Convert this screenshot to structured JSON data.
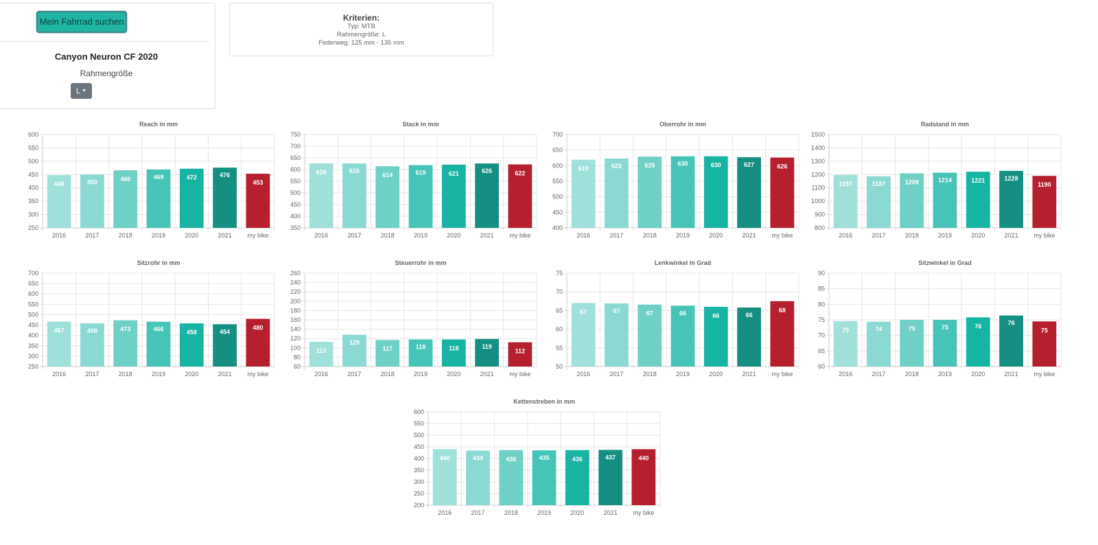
{
  "search_panel": {
    "search_button": "Mein Fahrrad suchen",
    "bike_name": "Canyon Neuron CF 2020",
    "frame_size_label": "Rahmengröße",
    "frame_size_value": "L",
    "dropdown_icon": "caret-down-icon"
  },
  "criteria": {
    "title": "Kriterien:",
    "lines": [
      "Typ: MTB",
      "Rahmengröße: L",
      "Federweg: 125 mm - 135 mm"
    ]
  },
  "colors": {
    "bars": [
      "#9fe0da",
      "#8ad9d2",
      "#6fd0c6",
      "#45c4b7",
      "#17b3a3",
      "#148f82",
      "#b51f2e"
    ],
    "grid": "#e6e6e6",
    "axis": "#cccccc"
  },
  "chart_data": [
    {
      "type": "bar",
      "title": "Reach in mm",
      "categories": [
        "2016",
        "2017",
        "2018",
        "2019",
        "2020",
        "2021",
        "my bike"
      ],
      "values": [
        448,
        450,
        466,
        469,
        472,
        476,
        453
      ],
      "ylim": [
        250,
        600
      ],
      "ticks": [
        250,
        300,
        350,
        400,
        450,
        500,
        550,
        600
      ],
      "grid": true,
      "legend": "none"
    },
    {
      "type": "bar",
      "title": "Stack in mm",
      "categories": [
        "2016",
        "2017",
        "2018",
        "2019",
        "2020",
        "2021",
        "my bike"
      ],
      "values": [
        626,
        626,
        614,
        619,
        621,
        626,
        622
      ],
      "ylim": [
        350,
        750
      ],
      "ticks": [
        350,
        400,
        450,
        500,
        550,
        600,
        650,
        700,
        750
      ],
      "grid": true,
      "legend": "none"
    },
    {
      "type": "bar",
      "title": "Oberrohr in mm",
      "categories": [
        "2016",
        "2017",
        "2018",
        "2019",
        "2020",
        "2021",
        "my bike"
      ],
      "values": [
        619,
        623,
        629,
        630,
        630,
        627,
        626
      ],
      "ylim": [
        400,
        700
      ],
      "ticks": [
        400,
        450,
        500,
        550,
        600,
        650,
        700
      ],
      "grid": true,
      "legend": "none"
    },
    {
      "type": "bar",
      "title": "Radstand in mm",
      "categories": [
        "2016",
        "2017",
        "2018",
        "2019",
        "2020",
        "2021",
        "my bike"
      ],
      "values": [
        1197,
        1187,
        1209,
        1214,
        1221,
        1228,
        1190
      ],
      "ylim": [
        800,
        1500
      ],
      "ticks": [
        800,
        900,
        1000,
        1100,
        1200,
        1300,
        1400,
        1500
      ],
      "grid": true,
      "legend": "none"
    },
    {
      "type": "bar",
      "title": "Sitzrohr in mm",
      "categories": [
        "2016",
        "2017",
        "2018",
        "2019",
        "2020",
        "2021",
        "my bike"
      ],
      "values": [
        467,
        458,
        473,
        466,
        458,
        454,
        480
      ],
      "ylim": [
        250,
        700
      ],
      "ticks": [
        250,
        300,
        350,
        400,
        450,
        500,
        550,
        600,
        650,
        700
      ],
      "grid": true,
      "legend": "none"
    },
    {
      "type": "bar",
      "title": "Steuerrohr in mm",
      "categories": [
        "2016",
        "2017",
        "2018",
        "2019",
        "2020",
        "2021",
        "my bike"
      ],
      "values": [
        113,
        128,
        117,
        118,
        118,
        119,
        112
      ],
      "ylim": [
        60,
        260
      ],
      "ticks": [
        60,
        80,
        100,
        120,
        140,
        160,
        180,
        200,
        220,
        240,
        260
      ],
      "grid": true,
      "legend": "none"
    },
    {
      "type": "bar",
      "title": "Lenkwinkel in Grad",
      "categories": [
        "2016",
        "2017",
        "2018",
        "2019",
        "2020",
        "2021",
        "my bike"
      ],
      "values": [
        67,
        67,
        67,
        66,
        66,
        66,
        68
      ],
      "exact_values": [
        67,
        66.9,
        66.6,
        66.3,
        66,
        65.8,
        67.5
      ],
      "ylim": [
        50,
        75
      ],
      "ticks": [
        50,
        55,
        60,
        65,
        70,
        75
      ],
      "grid": true,
      "legend": "none"
    },
    {
      "type": "bar",
      "title": "Sitzwinkel in Grad",
      "categories": [
        "2016",
        "2017",
        "2018",
        "2019",
        "2020",
        "2021",
        "my bike"
      ],
      "values": [
        75,
        74,
        75,
        75,
        76,
        76,
        75
      ],
      "exact_values": [
        74.6,
        74.4,
        75,
        75,
        75.8,
        76.4,
        74.5
      ],
      "ylim": [
        60,
        90
      ],
      "ticks": [
        60,
        65,
        70,
        75,
        80,
        85,
        90
      ],
      "grid": true,
      "legend": "none"
    },
    {
      "type": "bar",
      "title": "Kettenstreben in mm",
      "categories": [
        "2016",
        "2017",
        "2018",
        "2019",
        "2020",
        "2021",
        "my bike"
      ],
      "values": [
        440,
        434,
        436,
        435,
        436,
        437,
        440
      ],
      "ylim": [
        200,
        600
      ],
      "ticks": [
        200,
        250,
        300,
        350,
        400,
        450,
        500,
        550,
        600
      ],
      "grid": true,
      "legend": "none"
    }
  ]
}
